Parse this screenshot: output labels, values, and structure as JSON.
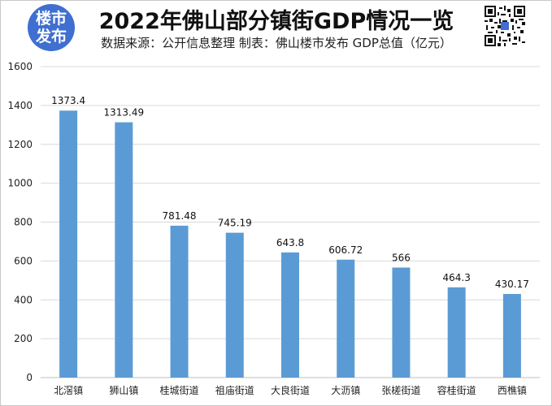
{
  "header": {
    "logo_line1": "楼市",
    "logo_line2": "发布",
    "title": "2022年佛山部分镇街GDP情况一览",
    "subtitle": "数据来源：公开信息整理    制表：佛山楼市发布 GDP总值（亿元）",
    "qr_icon": "qr-code-icon"
  },
  "colors": {
    "bar": "#5b9bd5",
    "grid": "#d9d9d9",
    "logo": "#3f6fd0"
  },
  "chart_data": {
    "type": "bar",
    "categories": [
      "北滘镇",
      "狮山镇",
      "桂城街道",
      "祖庙街道",
      "大良街道",
      "大沥镇",
      "张槎街道",
      "容桂街道",
      "西樵镇"
    ],
    "values": [
      1373.4,
      1313.49,
      781.48,
      745.19,
      643.8,
      606.72,
      566,
      464.3,
      430.17
    ],
    "value_labels": [
      "1373.4",
      "1313.49",
      "781.48",
      "745.19",
      "643.8",
      "606.72",
      "566",
      "464.3",
      "430.17"
    ],
    "yticks": [
      "0",
      "200",
      "400",
      "600",
      "800",
      "1000",
      "1200",
      "1400",
      "1600"
    ],
    "ylim": [
      0,
      1600
    ],
    "grid": true,
    "legend": "none",
    "title": "2022年佛山部分镇街GDP情况一览"
  }
}
